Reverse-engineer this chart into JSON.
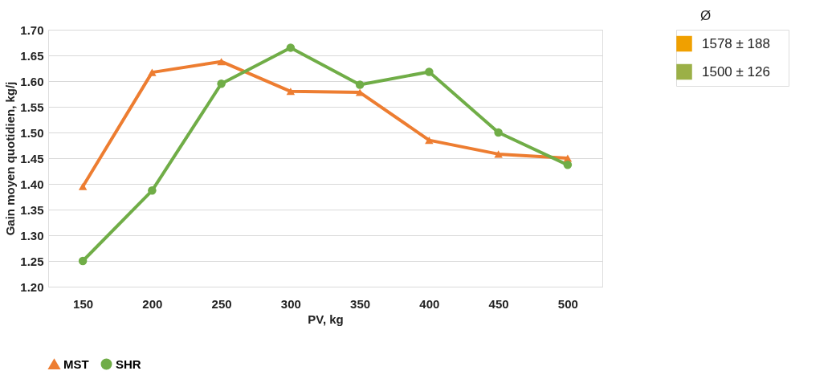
{
  "chart_data": [
    {
      "type": "line",
      "xlabel": "PV, kg",
      "ylabel": "Gain moyen quotidien, kg/j",
      "categories": [
        "150",
        "200",
        "250",
        "300",
        "350",
        "400",
        "450",
        "500"
      ],
      "series": [
        {
          "name": "MST",
          "color": "#ed7d31",
          "marker": "triangle",
          "values": [
            1.395,
            1.617,
            1.638,
            1.58,
            1.578,
            1.485,
            1.458,
            1.45
          ]
        },
        {
          "name": "SHR",
          "color": "#70ad47",
          "marker": "circle",
          "values": [
            1.25,
            1.387,
            1.595,
            1.665,
            1.593,
            1.618,
            1.5,
            1.437
          ]
        }
      ],
      "ylim": [
        1.2,
        1.7
      ],
      "yticks": [
        {
          "value": 1.2,
          "label": "1.20"
        },
        1.25,
        {
          "value": 1.3,
          "label": "1.30"
        },
        1.35,
        {
          "value": 1.4,
          "label": "1.40"
        },
        1.45,
        {
          "value": 1.5,
          "label": "1.50"
        },
        1.55,
        {
          "value": 1.6,
          "label": "1.60"
        },
        1.65,
        {
          "value": 1.7,
          "label": "1.70"
        }
      ],
      "grid": "y",
      "legend": "bottom"
    },
    {
      "type": "other",
      "title": "Ø",
      "categories": [
        "1578 ± 188",
        "1500 ± 126"
      ],
      "colors": [
        "#f0a000",
        "#9bb047"
      ]
    }
  ]
}
